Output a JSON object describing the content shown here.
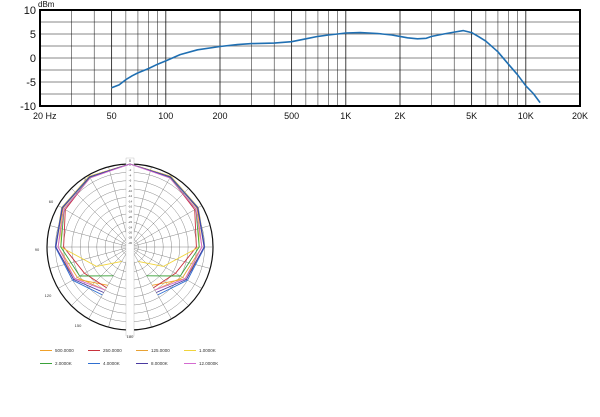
{
  "chart_data": [
    {
      "type": "line",
      "title": "",
      "ylabel": "dBm",
      "xlabel": "",
      "x_scale": "log",
      "xlim": [
        20,
        20000
      ],
      "ylim": [
        -10,
        10
      ],
      "grid": true,
      "y_ticks": [
        "10",
        "5",
        "0",
        "-5",
        "-10"
      ],
      "x_ticks": [
        {
          "value": 20,
          "label": "20 Hz"
        },
        {
          "value": 50,
          "label": "50"
        },
        {
          "value": 100,
          "label": "100"
        },
        {
          "value": 200,
          "label": "200"
        },
        {
          "value": 500,
          "label": "500"
        },
        {
          "value": 1000,
          "label": "1K"
        },
        {
          "value": 2000,
          "label": "2K"
        },
        {
          "value": 5000,
          "label": "5K"
        },
        {
          "value": 10000,
          "label": "10K"
        },
        {
          "value": 20000,
          "label": "20K"
        }
      ],
      "color": "#1f6fb2",
      "series": [
        {
          "x": [
            50,
            55,
            60,
            65,
            70,
            80,
            90,
            100,
            120,
            150,
            200,
            250,
            300,
            400,
            500,
            600,
            700,
            800,
            900,
            1000,
            1200,
            1500,
            1800,
            2000,
            2200,
            2500,
            2800,
            3000,
            3500,
            4000,
            4500,
            5000,
            5500,
            6000,
            7000,
            8000,
            9000,
            10000,
            11000,
            12000
          ],
          "y": [
            -6.2,
            -5.6,
            -4.5,
            -3.7,
            -3.1,
            -2.2,
            -1.3,
            -0.6,
            0.7,
            1.7,
            2.4,
            2.8,
            3.0,
            3.1,
            3.4,
            4.0,
            4.5,
            4.8,
            5.0,
            5.2,
            5.3,
            5.1,
            4.8,
            4.5,
            4.2,
            4.0,
            4.1,
            4.5,
            5.0,
            5.4,
            5.7,
            5.3,
            4.4,
            3.5,
            1.3,
            -1.3,
            -3.5,
            -5.8,
            -7.4,
            -9.3
          ]
        }
      ]
    },
    {
      "type": "polar",
      "angle_labels": [
        "0",
        "30",
        "60",
        "90",
        "120",
        "150",
        "180"
      ],
      "radial_labels": [
        "0",
        "-2",
        "-4",
        "-6",
        "-8",
        "-10",
        "-12",
        "-14",
        "-16",
        "-18",
        "-20",
        "-22",
        "-24",
        "-26",
        "-28",
        "-30"
      ],
      "series": [
        {
          "name": "500.0000",
          "color": "#f0a12a",
          "points": [
            [
              0,
              0
            ],
            [
              30,
              -0.5
            ],
            [
              60,
              -1.5
            ],
            [
              90,
              -3
            ],
            [
              120,
              -7
            ],
            [
              150,
              -14
            ]
          ]
        },
        {
          "name": "250.0000",
          "color": "#c8323c",
          "points": [
            [
              0,
              0
            ],
            [
              30,
              -1
            ],
            [
              60,
              -3
            ],
            [
              90,
              -6
            ],
            [
              120,
              -11
            ],
            [
              150,
              -13
            ]
          ]
        },
        {
          "name": "125.0000",
          "color": "#e8a234",
          "points": [
            [
              0,
              0
            ],
            [
              30,
              -0.5
            ],
            [
              60,
              -2
            ],
            [
              90,
              -4
            ],
            [
              120,
              -8
            ],
            [
              150,
              -12
            ]
          ]
        },
        {
          "name": "1.0000K",
          "color": "#f0d43c",
          "points": [
            [
              0,
              0
            ],
            [
              30,
              -0.5
            ],
            [
              60,
              -1.5
            ],
            [
              90,
              -5
            ],
            [
              120,
              -16
            ],
            [
              150,
              -24
            ]
          ]
        },
        {
          "name": "2.0000K",
          "color": "#3aa23a",
          "points": [
            [
              0,
              0
            ],
            [
              30,
              -1
            ],
            [
              60,
              -2.5
            ],
            [
              90,
              -5
            ],
            [
              120,
              -9
            ],
            [
              150,
              -18
            ]
          ]
        },
        {
          "name": "4.0000K",
          "color": "#2f6fd0",
          "points": [
            [
              0,
              0
            ],
            [
              30,
              -0.7
            ],
            [
              60,
              -1.6
            ],
            [
              90,
              -3
            ],
            [
              120,
              -6
            ],
            [
              150,
              -10
            ]
          ]
        },
        {
          "name": "8.0000K",
          "color": "#4a3aa0",
          "points": [
            [
              0,
              0
            ],
            [
              30,
              -0.8
            ],
            [
              60,
              -1.8
            ],
            [
              90,
              -3.2
            ],
            [
              120,
              -6.5
            ],
            [
              150,
              -11
            ]
          ]
        },
        {
          "name": "12.0000K",
          "color": "#d46ad0",
          "points": [
            [
              0,
              0
            ],
            [
              30,
              -1.2
            ],
            [
              60,
              -2.5
            ],
            [
              90,
              -4
            ],
            [
              120,
              -7
            ],
            [
              150,
              -12
            ]
          ]
        }
      ]
    }
  ]
}
